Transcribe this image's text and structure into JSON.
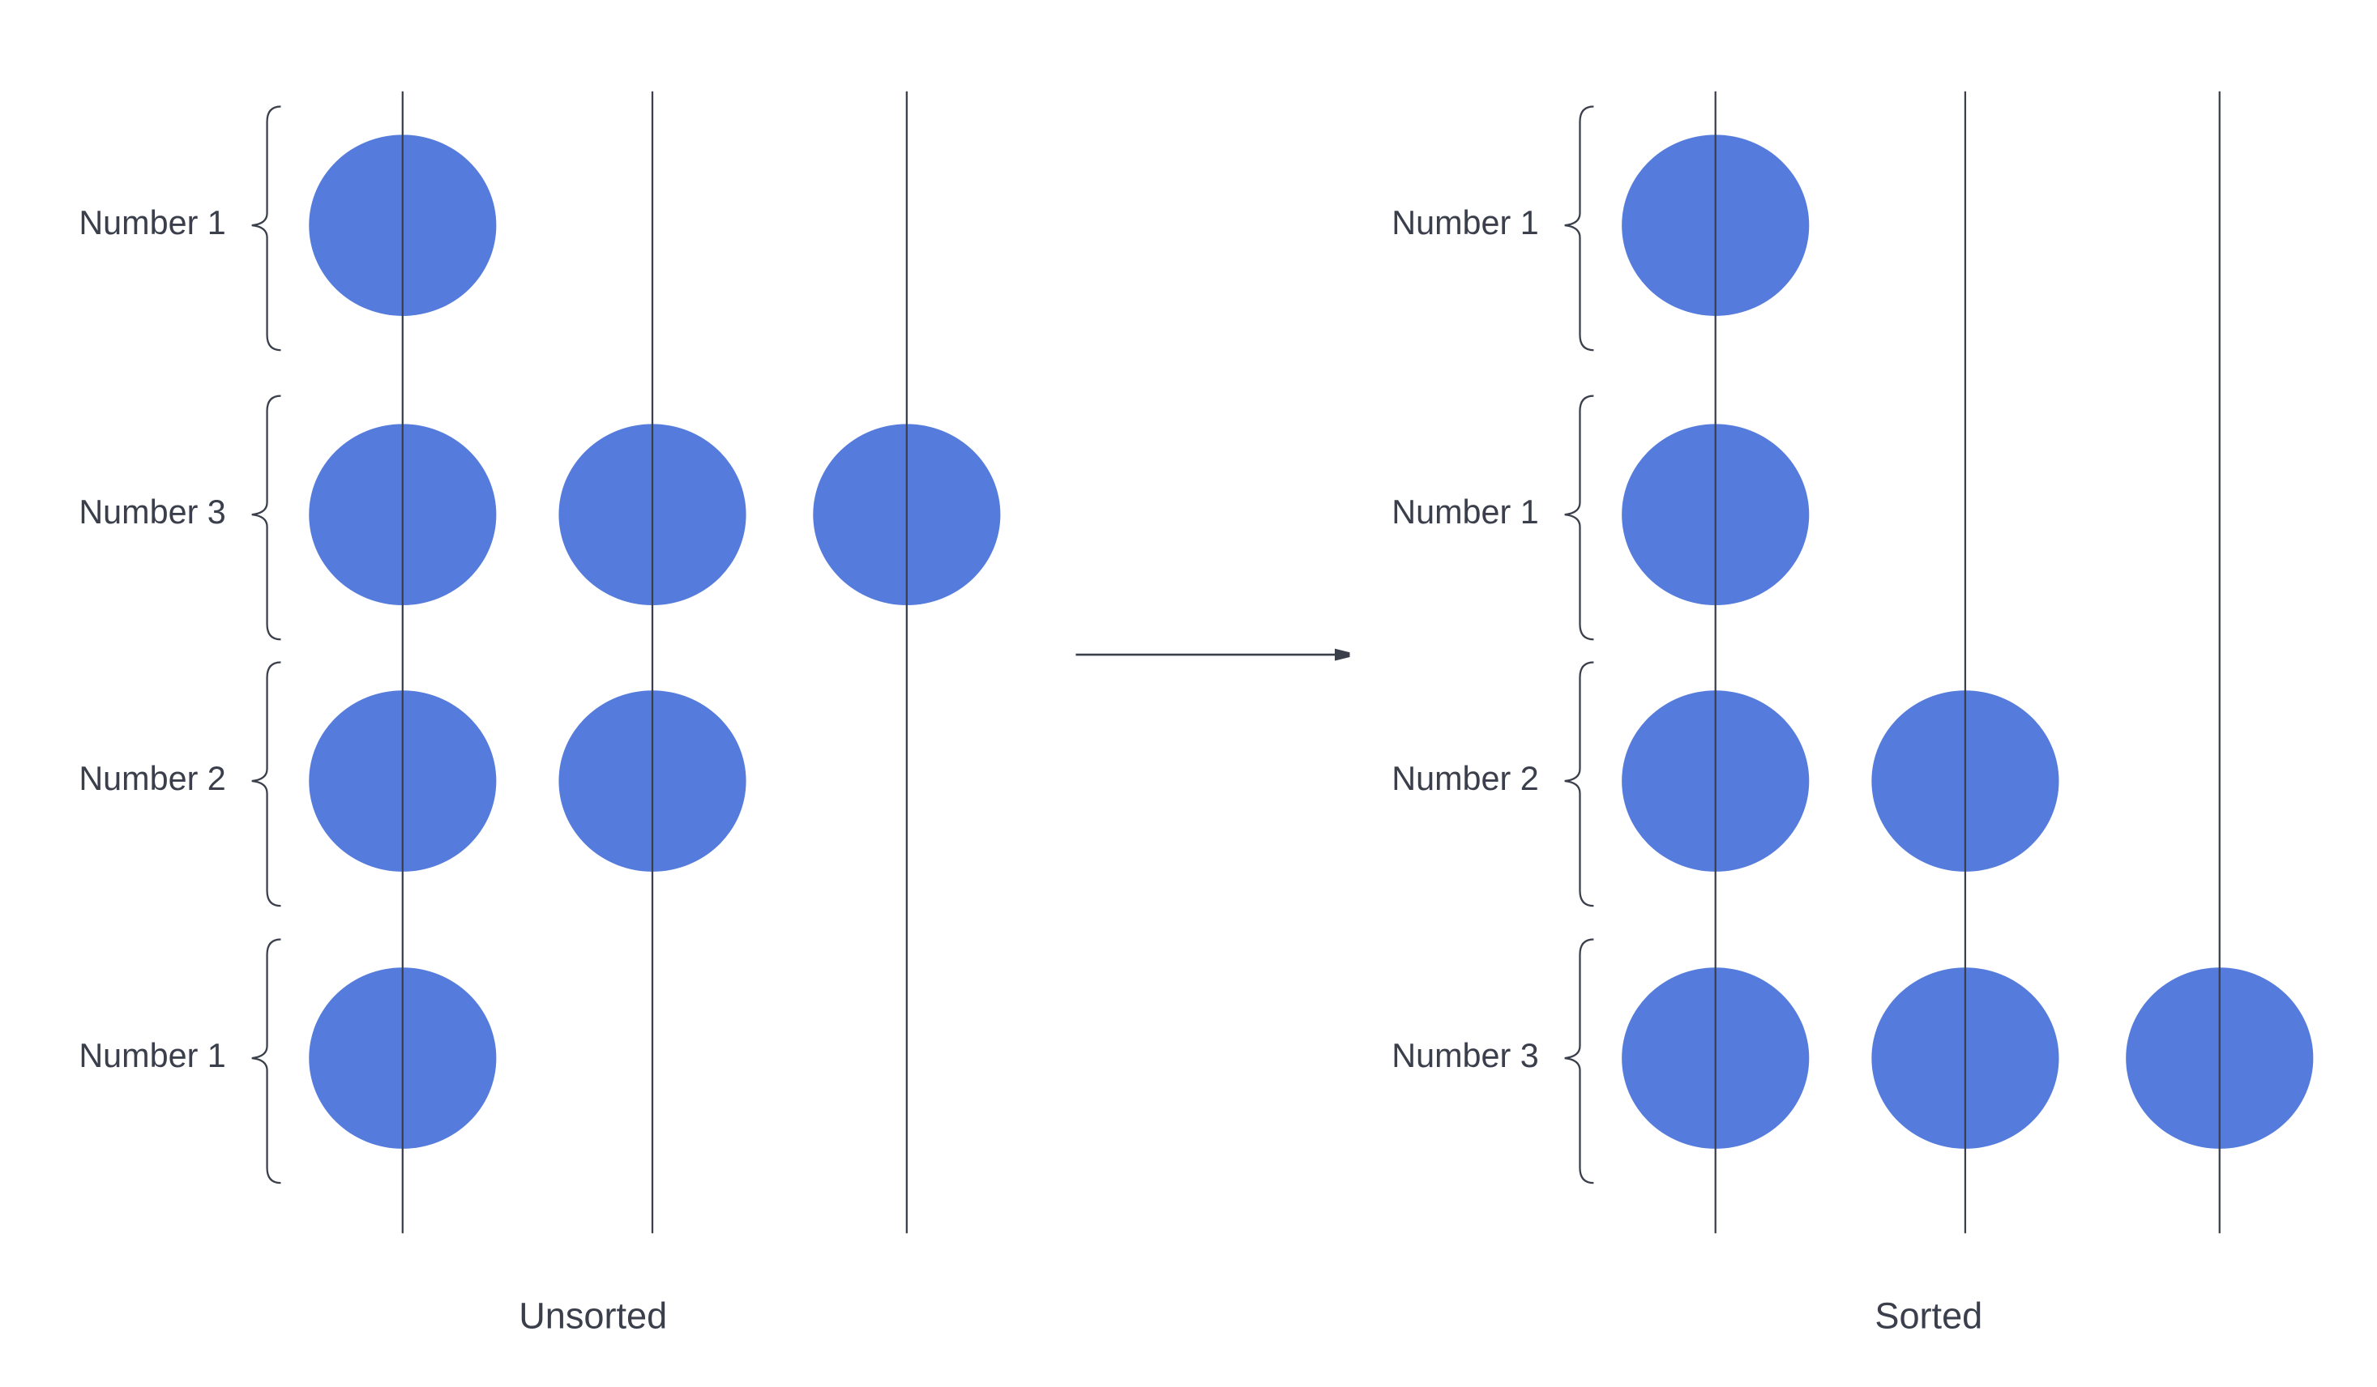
{
  "panels": [
    {
      "title": "Unsorted",
      "rows": [
        {
          "label": "Number 1",
          "beads": 1
        },
        {
          "label": "Number 3",
          "beads": 3
        },
        {
          "label": "Number 2",
          "beads": 2
        },
        {
          "label": "Number 1",
          "beads": 1
        }
      ]
    },
    {
      "title": "Sorted",
      "rows": [
        {
          "label": "Number 1",
          "beads": 1
        },
        {
          "label": "Number 1",
          "beads": 1
        },
        {
          "label": "Number 2",
          "beads": 2
        },
        {
          "label": "Number 3",
          "beads": 3
        }
      ]
    }
  ]
}
